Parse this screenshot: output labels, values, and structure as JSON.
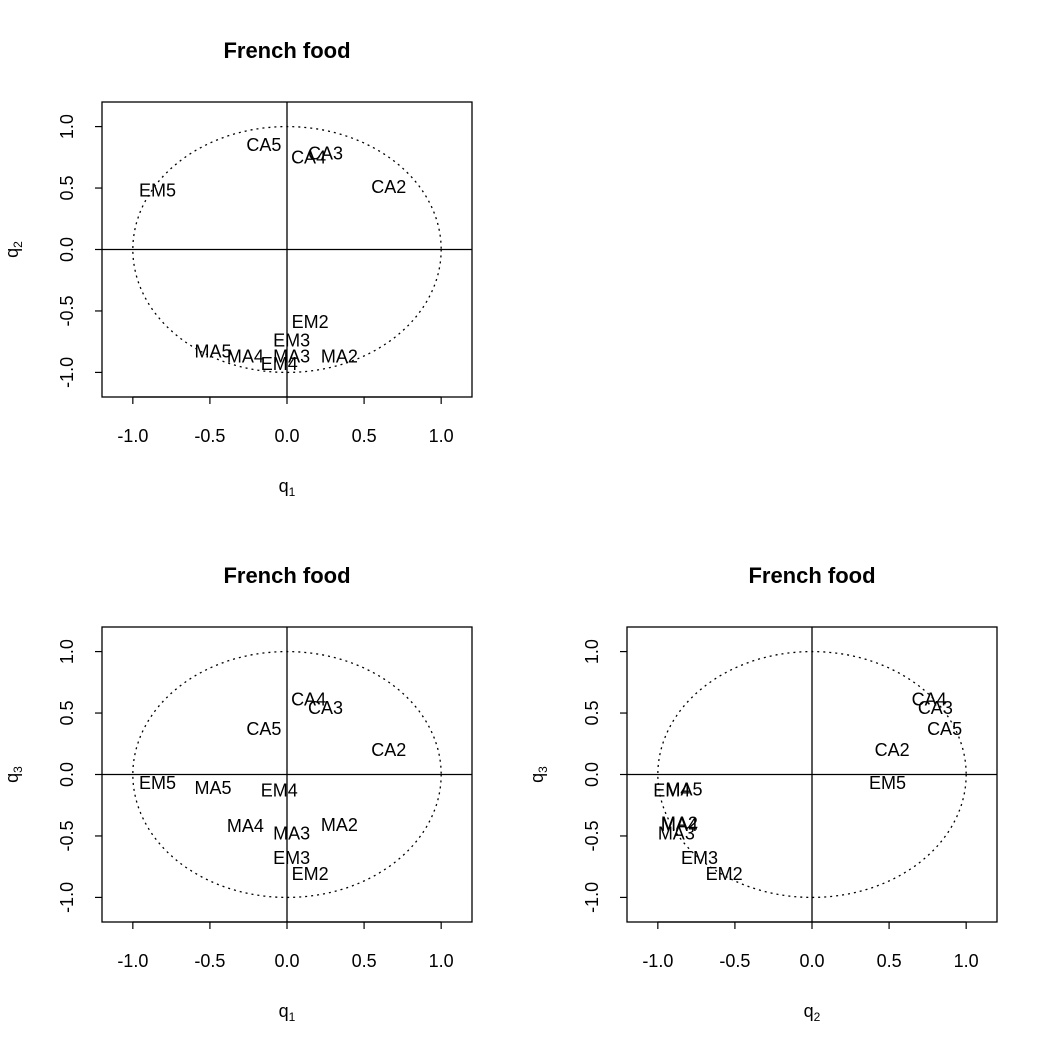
{
  "chart_data": [
    {
      "type": "scatter",
      "title": "French food",
      "xlabel": {
        "base": "q",
        "sub": "1"
      },
      "ylabel": {
        "base": "q",
        "sub": "2"
      },
      "xlim": [
        -1.2,
        1.2
      ],
      "ylim": [
        -1.2,
        1.2
      ],
      "xticks": [
        "-1.0",
        "-0.5",
        "0.0",
        "0.5",
        "1.0"
      ],
      "yticks": [
        "-1.0",
        "-0.5",
        "0.0",
        "0.5",
        "1.0"
      ],
      "unit_circle": true,
      "reference_lines": [
        0,
        0
      ],
      "points": [
        {
          "label": "CA5",
          "x": -0.15,
          "y": 0.85
        },
        {
          "label": "CA4",
          "x": 0.14,
          "y": 0.75
        },
        {
          "label": "CA3",
          "x": 0.25,
          "y": 0.78
        },
        {
          "label": "CA2",
          "x": 0.66,
          "y": 0.51
        },
        {
          "label": "EM5",
          "x": -0.84,
          "y": 0.48
        },
        {
          "label": "EM2",
          "x": 0.15,
          "y": -0.59
        },
        {
          "label": "EM3",
          "x": 0.03,
          "y": -0.74
        },
        {
          "label": "MA5",
          "x": -0.48,
          "y": -0.83
        },
        {
          "label": "MA4",
          "x": -0.27,
          "y": -0.87
        },
        {
          "label": "MA3",
          "x": 0.03,
          "y": -0.87
        },
        {
          "label": "EM4",
          "x": -0.05,
          "y": -0.93
        },
        {
          "label": "MA2",
          "x": 0.34,
          "y": -0.87
        }
      ]
    },
    {
      "type": "scatter",
      "title": "French food",
      "xlabel": {
        "base": "q",
        "sub": "1"
      },
      "ylabel": {
        "base": "q",
        "sub": "3"
      },
      "xlim": [
        -1.2,
        1.2
      ],
      "ylim": [
        -1.2,
        1.2
      ],
      "xticks": [
        "-1.0",
        "-0.5",
        "0.0",
        "0.5",
        "1.0"
      ],
      "yticks": [
        "-1.0",
        "-0.5",
        "0.0",
        "0.5",
        "1.0"
      ],
      "unit_circle": true,
      "reference_lines": [
        0,
        0
      ],
      "points": [
        {
          "label": "CA4",
          "x": 0.14,
          "y": 0.61
        },
        {
          "label": "CA3",
          "x": 0.25,
          "y": 0.54
        },
        {
          "label": "CA5",
          "x": -0.15,
          "y": 0.37
        },
        {
          "label": "CA2",
          "x": 0.66,
          "y": 0.2
        },
        {
          "label": "EM5",
          "x": -0.84,
          "y": -0.07
        },
        {
          "label": "MA5",
          "x": -0.48,
          "y": -0.11
        },
        {
          "label": "EM4",
          "x": -0.05,
          "y": -0.13
        },
        {
          "label": "MA4",
          "x": -0.27,
          "y": -0.42
        },
        {
          "label": "MA2",
          "x": 0.34,
          "y": -0.41
        },
        {
          "label": "MA3",
          "x": 0.03,
          "y": -0.48
        },
        {
          "label": "EM3",
          "x": 0.03,
          "y": -0.68
        },
        {
          "label": "EM2",
          "x": 0.15,
          "y": -0.81
        }
      ]
    },
    {
      "type": "scatter",
      "title": "French food",
      "xlabel": {
        "base": "q",
        "sub": "2"
      },
      "ylabel": {
        "base": "q",
        "sub": "3"
      },
      "xlim": [
        -1.2,
        1.2
      ],
      "ylim": [
        -1.2,
        1.2
      ],
      "xticks": [
        "-1.0",
        "-0.5",
        "0.0",
        "0.5",
        "1.0"
      ],
      "yticks": [
        "-1.0",
        "-0.5",
        "0.0",
        "0.5",
        "1.0"
      ],
      "unit_circle": true,
      "reference_lines": [
        0,
        0
      ],
      "points": [
        {
          "label": "CA4",
          "x": 0.76,
          "y": 0.61
        },
        {
          "label": "CA3",
          "x": 0.8,
          "y": 0.54
        },
        {
          "label": "CA5",
          "x": 0.86,
          "y": 0.37
        },
        {
          "label": "CA2",
          "x": 0.52,
          "y": 0.2
        },
        {
          "label": "EM5",
          "x": 0.49,
          "y": -0.07
        },
        {
          "label": "EM4",
          "x": -0.91,
          "y": -0.13
        },
        {
          "label": "MA5",
          "x": -0.83,
          "y": -0.12
        },
        {
          "label": "MA4",
          "x": -0.86,
          "y": -0.41
        },
        {
          "label": "MA2",
          "x": -0.86,
          "y": -0.4
        },
        {
          "label": "MA3",
          "x": -0.88,
          "y": -0.48
        },
        {
          "label": "EM3",
          "x": -0.73,
          "y": -0.68
        },
        {
          "label": "EM2",
          "x": -0.57,
          "y": -0.81
        }
      ]
    }
  ]
}
